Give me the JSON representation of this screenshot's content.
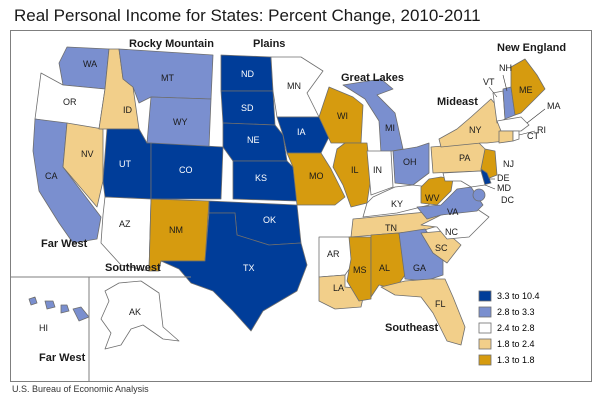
{
  "title": "Real Personal Income for States: Percent Change, 2010-2011",
  "source": "U.S. Bureau of Economic Analysis",
  "colors": {
    "c1": "#003d99",
    "c2": "#7a8fcf",
    "c3": "#ffffff",
    "c4": "#f2cf8a",
    "c5": "#d69b0f",
    "border": "#6e6e6e"
  },
  "legend": [
    {
      "key": "c1",
      "label": "3.3 to 10.4"
    },
    {
      "key": "c2",
      "label": "2.8 to 3.3"
    },
    {
      "key": "c3",
      "label": "2.4 to 2.8"
    },
    {
      "key": "c4",
      "label": "1.8 to 2.4"
    },
    {
      "key": "c5",
      "label": "1.3 to 1.8"
    }
  ],
  "regions": {
    "rocky_mountain": "Rocky Mountain",
    "plains": "Plains",
    "great_lakes": "Great Lakes",
    "new_england": "New England",
    "mideast": "Mideast",
    "far_west": "Far West",
    "far_west_2": "Far West",
    "southwest": "Southwest",
    "southeast": "Southeast"
  },
  "states": {
    "WA": {
      "label": "WA",
      "cls": "c2"
    },
    "OR": {
      "label": "OR",
      "cls": "c3"
    },
    "CA": {
      "label": "CA",
      "cls": "c2"
    },
    "NV": {
      "label": "NV",
      "cls": "c4"
    },
    "ID": {
      "label": "ID",
      "cls": "c4"
    },
    "MT": {
      "label": "MT",
      "cls": "c2"
    },
    "WY": {
      "label": "WY",
      "cls": "c2"
    },
    "UT": {
      "label": "UT",
      "cls": "c1"
    },
    "CO": {
      "label": "CO",
      "cls": "c1"
    },
    "AZ": {
      "label": "AZ",
      "cls": "c3"
    },
    "NM": {
      "label": "NM",
      "cls": "c5"
    },
    "ND": {
      "label": "ND",
      "cls": "c1"
    },
    "SD": {
      "label": "SD",
      "cls": "c1"
    },
    "NE": {
      "label": "NE",
      "cls": "c1"
    },
    "KS": {
      "label": "KS",
      "cls": "c1"
    },
    "MN": {
      "label": "MN",
      "cls": "c3"
    },
    "IA": {
      "label": "IA",
      "cls": "c1"
    },
    "MO": {
      "label": "MO",
      "cls": "c5"
    },
    "OK": {
      "label": "OK",
      "cls": "c1"
    },
    "TX": {
      "label": "TX",
      "cls": "c1"
    },
    "WI": {
      "label": "WI",
      "cls": "c5"
    },
    "MI": {
      "label": "MI",
      "cls": "c2"
    },
    "IL": {
      "label": "IL",
      "cls": "c5"
    },
    "IN": {
      "label": "IN",
      "cls": "c3"
    },
    "OH": {
      "label": "OH",
      "cls": "c2"
    },
    "KY": {
      "label": "KY",
      "cls": "c3"
    },
    "TN": {
      "label": "TN",
      "cls": "c4"
    },
    "AR": {
      "label": "AR",
      "cls": "c3"
    },
    "LA": {
      "label": "LA",
      "cls": "c4"
    },
    "MS": {
      "label": "MS",
      "cls": "c5"
    },
    "AL": {
      "label": "AL",
      "cls": "c5"
    },
    "GA": {
      "label": "GA",
      "cls": "c2"
    },
    "FL": {
      "label": "FL",
      "cls": "c4"
    },
    "SC": {
      "label": "SC",
      "cls": "c4"
    },
    "NC": {
      "label": "NC",
      "cls": "c3"
    },
    "VA": {
      "label": "VA",
      "cls": "c2"
    },
    "WV": {
      "label": "WV",
      "cls": "c5"
    },
    "NY": {
      "label": "NY",
      "cls": "c4"
    },
    "PA": {
      "label": "PA",
      "cls": "c4"
    },
    "NJ": {
      "label": "NJ",
      "cls": "c5"
    },
    "DE": {
      "label": "DE",
      "cls": "c1"
    },
    "MD": {
      "label": "MD",
      "cls": "c3"
    },
    "DC": {
      "label": "DC",
      "cls": "c2"
    },
    "VT": {
      "label": "VT",
      "cls": "c3"
    },
    "NH": {
      "label": "NH",
      "cls": "c2"
    },
    "ME": {
      "label": "ME",
      "cls": "c5"
    },
    "MA": {
      "label": "MA",
      "cls": "c3"
    },
    "RI": {
      "label": "RI",
      "cls": "c3"
    },
    "CT": {
      "label": "CT",
      "cls": "c4"
    },
    "AK": {
      "label": "AK",
      "cls": "c3"
    },
    "HI": {
      "label": "HI",
      "cls": "c2"
    }
  }
}
